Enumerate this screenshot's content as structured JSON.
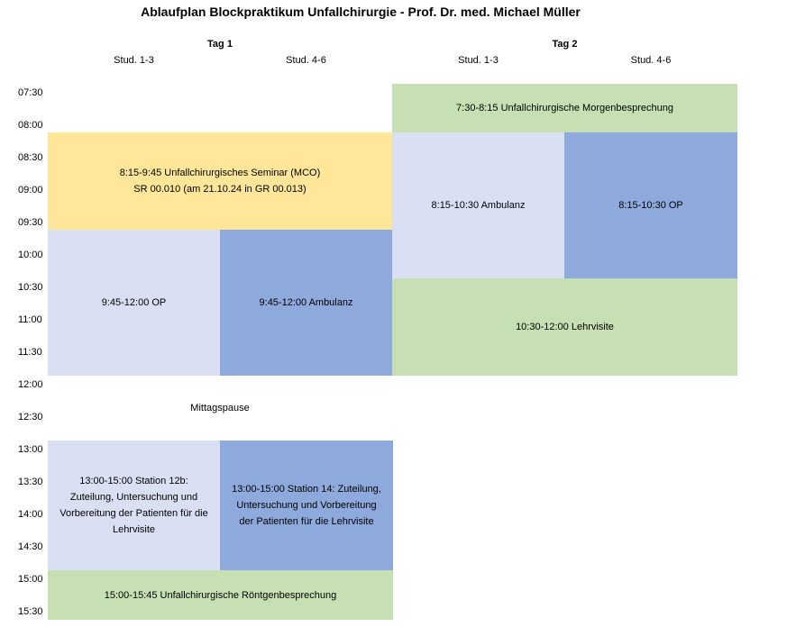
{
  "title": "Ablaufplan Blockpraktikum Unfallchirurgie - Prof. Dr. med. Michael Müller",
  "days": [
    {
      "label": "Tag 1",
      "groups": [
        "Stud. 1-3",
        "Stud. 4-6"
      ]
    },
    {
      "label": "Tag 2",
      "groups": [
        "Stud. 1-3",
        "Stud. 4-6"
      ]
    }
  ],
  "times": [
    "07:30",
    "08:00",
    "08:30",
    "09:00",
    "09:30",
    "10:00",
    "10:30",
    "11:00",
    "11:30",
    "12:00",
    "12:30",
    "13:00",
    "13:30",
    "14:00",
    "14:30",
    "15:00",
    "15:30"
  ],
  "colors": {
    "yellow": "#ffe699",
    "light_blue": "#dae0f3",
    "blue": "#8eaadc",
    "green": "#c6e0b4"
  },
  "blocks": {
    "seminar": "8:15-9:45 Unfallchirurgisches Seminar (MCO)\nSR 00.010 (am 21.10.24 in GR 00.013)",
    "d1_op": "9:45-12:00 OP",
    "d1_ambulanz": "9:45-12:00 Ambulanz",
    "mittagspause": "Mittagspause",
    "station12b": "13:00-15:00 Station 12b:\nZuteilung, Untersuchung und\nVorbereitung der Patienten für die\nLehrvisite",
    "station14": "13:00-15:00 Station 14: Zuteilung,\nUntersuchung und Vorbereitung\nder Patienten für die Lehrvisite",
    "roentgen": "15:00-15:45 Unfallchirurgische Röntgenbesprechung",
    "morgen": "7:30-8:15 Unfallchirurgische Morgenbesprechung",
    "d2_ambulanz": "8:15-10:30 Ambulanz",
    "d2_op": "8:15-10:30 OP",
    "lehrvisite": "10:30-12:00 Lehrvisite"
  }
}
